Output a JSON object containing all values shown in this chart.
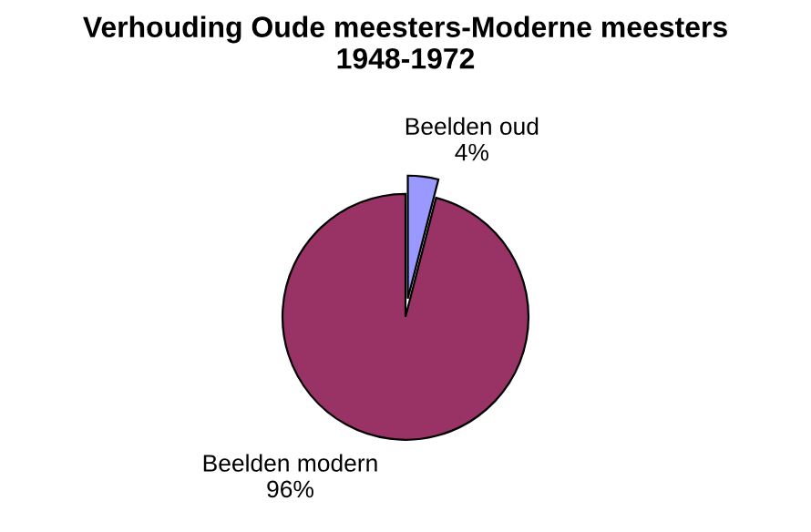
{
  "chart_data": {
    "type": "pie",
    "title": "Verhouding Oude meesters-Moderne meesters\n1948-1972",
    "categories": [
      "Beelden oud",
      "Beelden modern"
    ],
    "values": [
      4,
      96
    ],
    "colors": [
      "#9999ff",
      "#993366"
    ],
    "value_labels": [
      "4%",
      "96%"
    ]
  }
}
